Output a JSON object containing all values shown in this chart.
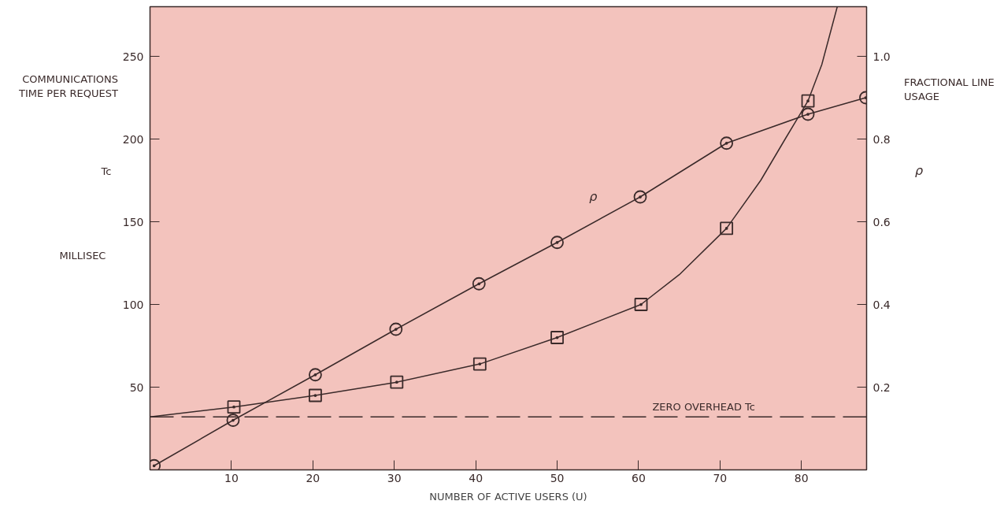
{
  "chart_data": {
    "type": "line",
    "xlabel": "NUMBER OF ACTIVE USERS (U)",
    "ylabel": "COMMUNICATIONS TIME PER REQUEST",
    "y2label": "FRACTIONAL LINE USAGE",
    "annotations": [
      "Tc",
      "MILLISEC",
      "ρ",
      {
        "text": "ZERO OVERHEAD Tc",
        "x": 68,
        "y": 32
      }
    ],
    "xlim": [
      0,
      88
    ],
    "xticks": [
      10,
      20,
      30,
      40,
      50,
      60,
      70,
      80
    ],
    "ylim": [
      0,
      280
    ],
    "yticks": [
      50,
      100,
      150,
      200,
      250
    ],
    "y2lim": [
      0,
      1.12
    ],
    "y2ticks": [
      0.2,
      0.4,
      0.6,
      {
        "value": 0.8,
        "label": "0.8"
      },
      {
        "value": 1.0,
        "label": "1.0"
      }
    ],
    "grid": false,
    "ref_lines": [
      {
        "axis": "y",
        "value": 32,
        "color": "#3a2a2a",
        "line_style": "dashed"
      }
    ],
    "series": [
      {
        "name": "ρ",
        "axis": "y2",
        "marker": "circle",
        "color": "#3a2a2a",
        "x": [
          0.5,
          10.2,
          20.3,
          30.2,
          40.4,
          50.0,
          60.2,
          70.8,
          80.8,
          87.9
        ],
        "values": [
          0.01,
          0.12,
          0.23,
          0.34,
          0.45,
          0.55,
          0.66,
          0.79,
          0.86,
          0.9
        ]
      },
      {
        "type": "scatter",
        "marker": "square",
        "color": "#3a2a2a",
        "x": [
          10.3,
          20.3,
          30.3,
          40.5,
          50.0,
          60.3,
          70.8,
          80.8
        ],
        "values": [
          38,
          45,
          53,
          64,
          80,
          100,
          146,
          223
        ]
      },
      {
        "marker": "none",
        "color": "#3a2a2a",
        "x": [
          0,
          10.3,
          20.3,
          30.3,
          40.5,
          50.0,
          60.3,
          65,
          70.8,
          75,
          78,
          80.8,
          82.5,
          84.4
        ],
        "values": [
          32,
          38,
          45,
          53,
          64,
          80,
          100,
          118,
          146,
          175,
          200,
          223,
          245,
          280
        ]
      }
    ]
  }
}
